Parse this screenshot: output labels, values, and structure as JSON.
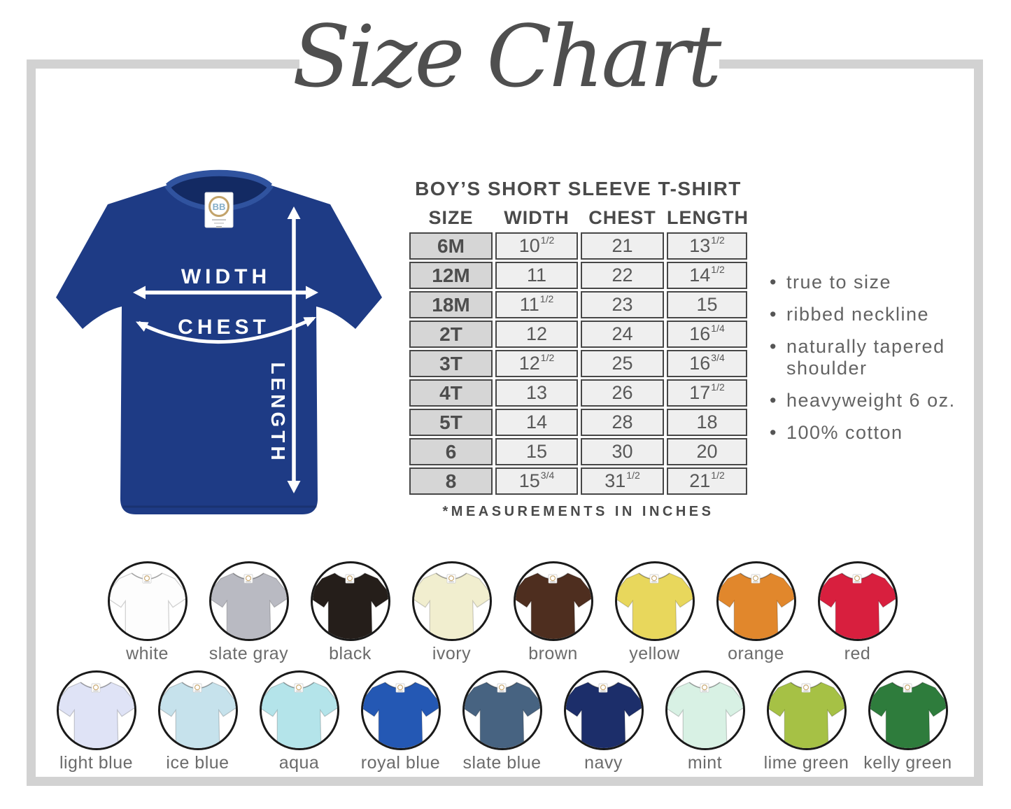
{
  "title": "Size Chart",
  "shirt_diagram": {
    "labels": {
      "width": "WIDTH",
      "chest": "CHEST",
      "length": "LENGTH"
    },
    "brand_tag": "BB",
    "shirt_color": "#1e3b85"
  },
  "size_table": {
    "title": "BOY’S SHORT SLEEVE T-SHIRT",
    "columns": [
      "SIZE",
      "WIDTH",
      "CHEST",
      "LENGTH"
    ],
    "rows": [
      {
        "size": "6M",
        "width": {
          "v": "10",
          "f": "1/2"
        },
        "chest": {
          "v": "21",
          "f": ""
        },
        "length": {
          "v": "13",
          "f": "1/2"
        }
      },
      {
        "size": "12M",
        "width": {
          "v": "11",
          "f": ""
        },
        "chest": {
          "v": "22",
          "f": ""
        },
        "length": {
          "v": "14",
          "f": "1/2"
        }
      },
      {
        "size": "18M",
        "width": {
          "v": "11",
          "f": "1/2"
        },
        "chest": {
          "v": "23",
          "f": ""
        },
        "length": {
          "v": "15",
          "f": ""
        }
      },
      {
        "size": "2T",
        "width": {
          "v": "12",
          "f": ""
        },
        "chest": {
          "v": "24",
          "f": ""
        },
        "length": {
          "v": "16",
          "f": "1/4"
        }
      },
      {
        "size": "3T",
        "width": {
          "v": "12",
          "f": "1/2"
        },
        "chest": {
          "v": "25",
          "f": ""
        },
        "length": {
          "v": "16",
          "f": "3/4"
        }
      },
      {
        "size": "4T",
        "width": {
          "v": "13",
          "f": ""
        },
        "chest": {
          "v": "26",
          "f": ""
        },
        "length": {
          "v": "17",
          "f": "1/2"
        }
      },
      {
        "size": "5T",
        "width": {
          "v": "14",
          "f": ""
        },
        "chest": {
          "v": "28",
          "f": ""
        },
        "length": {
          "v": "18",
          "f": ""
        }
      },
      {
        "size": "6",
        "width": {
          "v": "15",
          "f": ""
        },
        "chest": {
          "v": "30",
          "f": ""
        },
        "length": {
          "v": "20",
          "f": ""
        }
      },
      {
        "size": "8",
        "width": {
          "v": "15",
          "f": "3/4"
        },
        "chest": {
          "v": "31",
          "f": "1/2"
        },
        "length": {
          "v": "21",
          "f": "1/2"
        }
      }
    ],
    "note": "*MEASUREMENTS IN INCHES"
  },
  "features": [
    "true to size",
    "ribbed neckline",
    "naturally tapered shoulder",
    "heavyweight 6 oz.",
    "100% cotton"
  ],
  "bullet": "•",
  "colors": {
    "row1": [
      {
        "label": "white",
        "hex": "#fdfdfd"
      },
      {
        "label": "slate gray",
        "hex": "#b9bac2"
      },
      {
        "label": "black",
        "hex": "#251e1a"
      },
      {
        "label": "ivory",
        "hex": "#f1eecf"
      },
      {
        "label": "brown",
        "hex": "#4e2e1f"
      },
      {
        "label": "yellow",
        "hex": "#e8d75c"
      },
      {
        "label": "orange",
        "hex": "#e1872c"
      },
      {
        "label": "red",
        "hex": "#d81f3e"
      }
    ],
    "row2": [
      {
        "label": "light blue",
        "hex": "#dfe3f6"
      },
      {
        "label": "ice blue",
        "hex": "#c6e2ec"
      },
      {
        "label": "aqua",
        "hex": "#b4e4ea"
      },
      {
        "label": "royal blue",
        "hex": "#2458b4"
      },
      {
        "label": "slate blue",
        "hex": "#476381"
      },
      {
        "label": "navy",
        "hex": "#1c2e6a"
      },
      {
        "label": "mint",
        "hex": "#d8f1e4"
      },
      {
        "label": "lime green",
        "hex": "#a6c145"
      },
      {
        "label": "kelly green",
        "hex": "#2e7c3c"
      }
    ]
  },
  "palette": {
    "frame": "#d2d2d2",
    "heading_text": "#4a4a4a",
    "body_text": "#636363",
    "table_border": "#474747",
    "size_col_bg": "#d6d6d6",
    "cell_bg": "#efefef",
    "swatch_ring": "#1a1a1a"
  }
}
